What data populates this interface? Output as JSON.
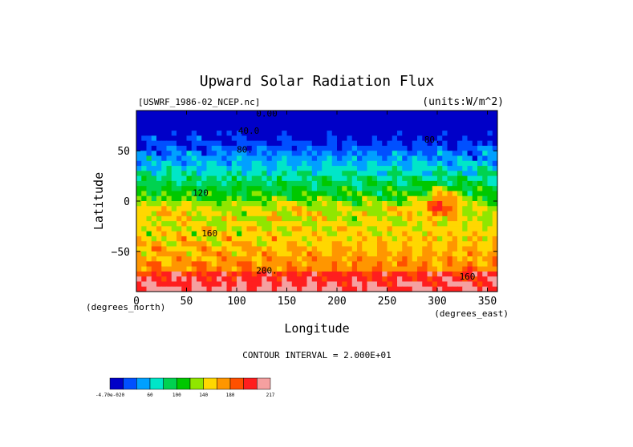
{
  "chart_data": {
    "type": "heatmap",
    "title": "Upward Solar Radiation Flux",
    "source_label": "[USWRF_1986-02_NCEP.nc]",
    "units_label": "(units:W/m^2)",
    "xlabel": "Longitude",
    "ylabel": "Latitude",
    "x_unit_label": "(degrees_east)",
    "y_unit_label": "(degrees_north)",
    "xlim": [
      0,
      360
    ],
    "ylim": [
      -90,
      90
    ],
    "x_ticks": [
      0,
      50,
      100,
      150,
      200,
      250,
      300,
      350
    ],
    "y_ticks": [
      50,
      0,
      -50
    ],
    "contour_interval_text": "CONTOUR INTERVAL = 2.000E+01",
    "contour_labels": [
      {
        "text": "0.00",
        "lon": 130,
        "lat": 84
      },
      {
        "text": "40.0",
        "lon": 112,
        "lat": 67
      },
      {
        "text": "80.",
        "lon": 108,
        "lat": 48
      },
      {
        "text": "80.",
        "lon": 295,
        "lat": 58
      },
      {
        "text": "120",
        "lon": 64,
        "lat": 5
      },
      {
        "text": "160",
        "lon": 73,
        "lat": -35
      },
      {
        "text": "200.",
        "lon": 130,
        "lat": -72
      },
      {
        "text": "160",
        "lon": 330,
        "lat": -78
      }
    ],
    "colorbar": {
      "colors": [
        "#0000c8",
        "#0050ff",
        "#00a0ff",
        "#00e6c8",
        "#00d250",
        "#00c800",
        "#90e600",
        "#ffd700",
        "#ff9600",
        "#ff5000",
        "#ff1e1e",
        "#f5a0a0"
      ],
      "tick_labels": [
        "-4.70e-020",
        "60",
        "100",
        "140",
        "180",
        "217"
      ]
    }
  }
}
